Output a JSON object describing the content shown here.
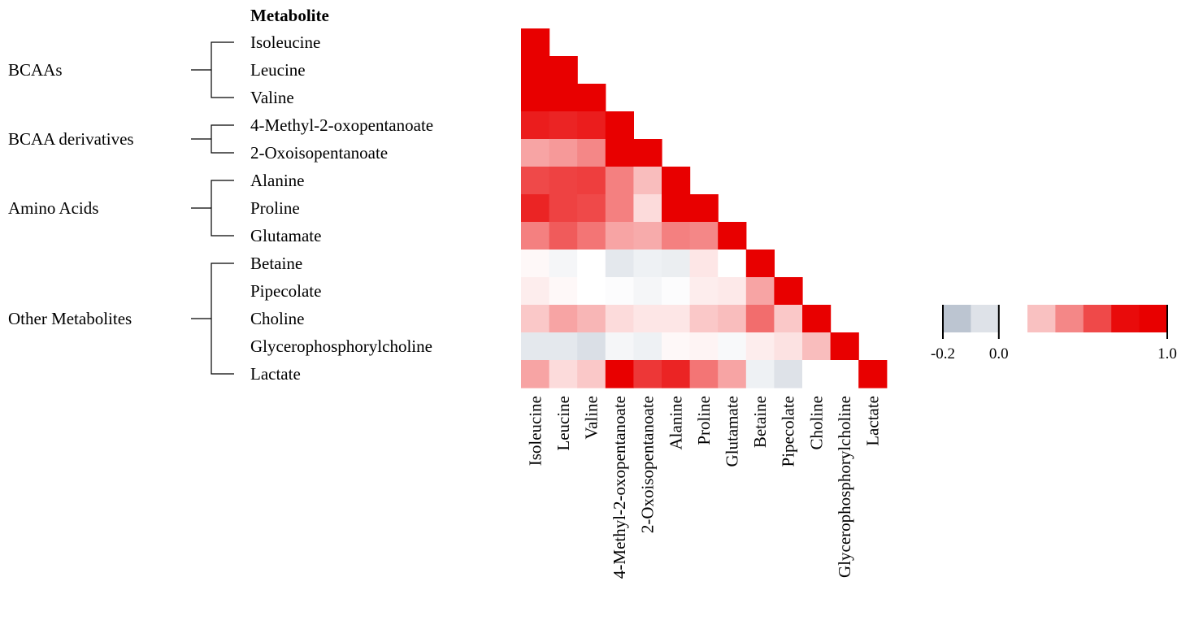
{
  "chart_data": {
    "type": "heatmap",
    "title": "Metabolite",
    "metabolites": [
      "Isoleucine",
      "Leucine",
      "Valine",
      "4-Methyl-2-oxopentanoate",
      "2-Oxoisopentanoate",
      "Alanine",
      "Proline",
      "Glutamate",
      "Betaine",
      "Pipecolate",
      "Choline",
      "Glycerophosphorylcholine",
      "Lactate"
    ],
    "groups": [
      {
        "label": "BCAAs",
        "start": 0,
        "end": 2
      },
      {
        "label": "BCAA derivatives",
        "start": 3,
        "end": 4
      },
      {
        "label": "Amino Acids",
        "start": 5,
        "end": 7
      },
      {
        "label": "Other Metabolites",
        "start": 8,
        "end": 12
      }
    ],
    "matrix_lower_triangle": [
      [
        1.0
      ],
      [
        1.0,
        1.0
      ],
      [
        1.0,
        1.0,
        1.0
      ],
      [
        0.62,
        0.6,
        0.62,
        1.0
      ],
      [
        0.25,
        0.28,
        0.33,
        0.75,
        1.0
      ],
      [
        0.5,
        0.52,
        0.53,
        0.35,
        0.18,
        1.0
      ],
      [
        0.6,
        0.52,
        0.5,
        0.35,
        0.1,
        0.72,
        1.0
      ],
      [
        0.35,
        0.45,
        0.38,
        0.25,
        0.23,
        0.35,
        0.33,
        1.0
      ],
      [
        0.02,
        -0.03,
        0.0,
        -0.08,
        -0.05,
        -0.06,
        0.07,
        0.0,
        1.0
      ],
      [
        0.05,
        0.02,
        0.0,
        -0.01,
        -0.03,
        -0.01,
        0.05,
        0.06,
        0.25,
        1.0
      ],
      [
        0.15,
        0.25,
        0.2,
        0.1,
        0.07,
        0.07,
        0.15,
        0.18,
        0.4,
        0.15,
        1.0
      ],
      [
        -0.08,
        -0.08,
        -0.11,
        -0.03,
        -0.05,
        0.02,
        0.03,
        -0.02,
        0.05,
        0.08,
        0.18,
        1.0
      ],
      [
        0.25,
        0.1,
        0.15,
        0.7,
        0.55,
        0.6,
        0.38,
        0.25,
        -0.05,
        -0.1,
        0.0,
        0.0,
        1.0
      ]
    ],
    "colorbar": {
      "negative_steps": [
        -0.2,
        -0.1
      ],
      "positive_steps": [
        0.17,
        0.33,
        0.5,
        0.67,
        0.83
      ],
      "tick_labels": [
        "-0.2",
        "0.0",
        "1.0"
      ],
      "range": [
        -0.2,
        1.0
      ]
    },
    "colors": {
      "positive_max": "#e80000",
      "negative_max": "#bcc5d1",
      "zero": "#ffffff"
    }
  }
}
